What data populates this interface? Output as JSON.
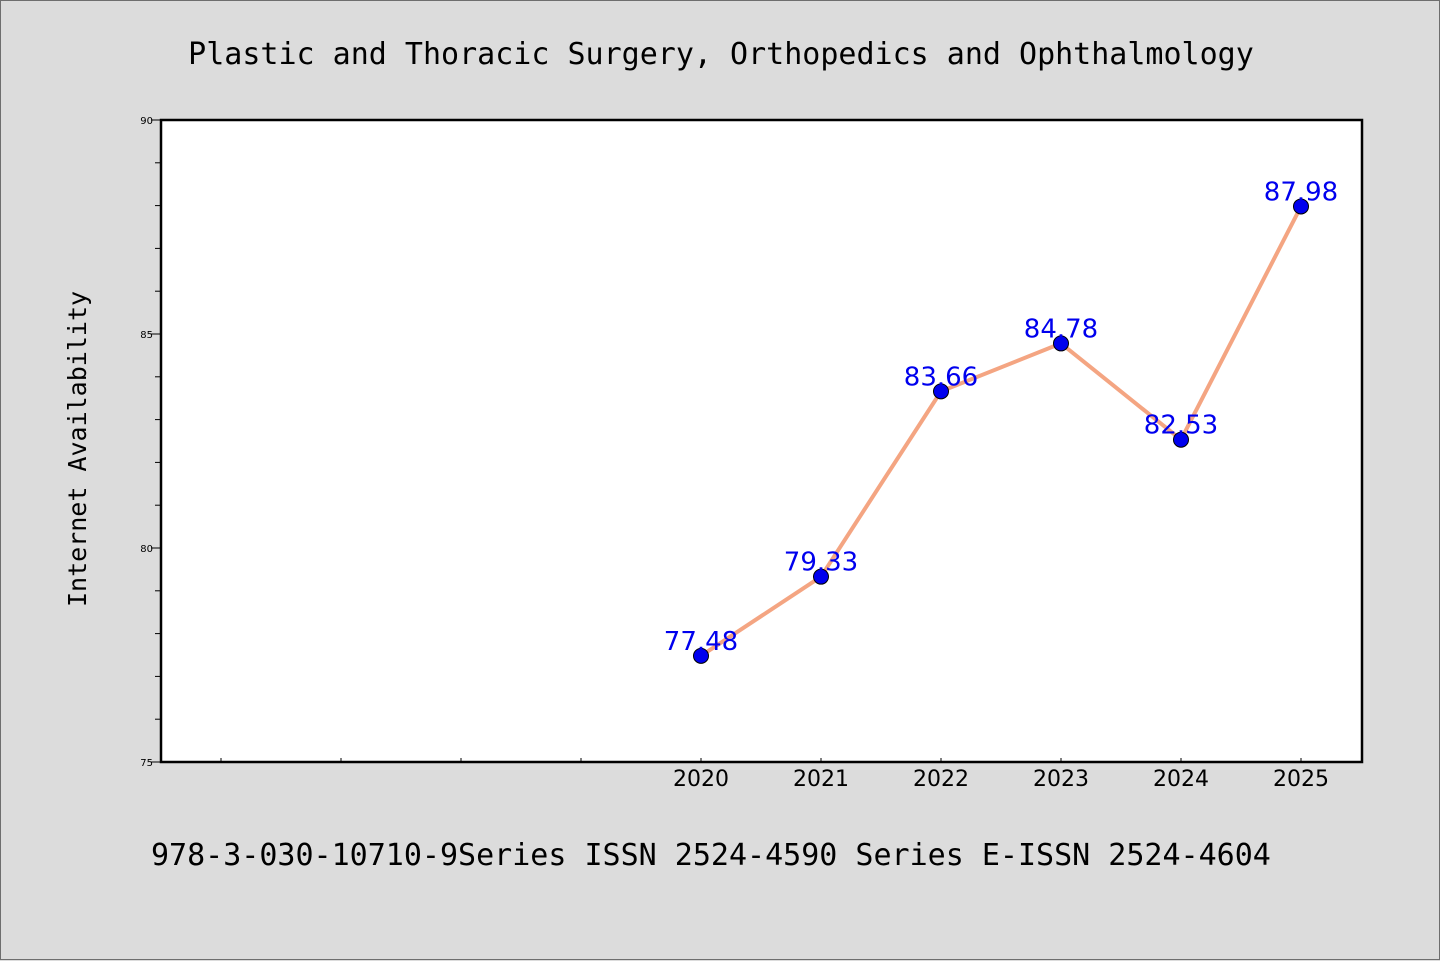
{
  "colors": {
    "background": "#dcdcdc",
    "plot_background": "#ffffff",
    "line": "#f4a582",
    "marker": "#0000ee",
    "data_label": "#0000ee"
  },
  "footer": "978-3-030-10710-9Series ISSN 2524-4590 Series E-ISSN 2524-4604",
  "chart_data": {
    "type": "line",
    "title": "Plastic and Thoracic Surgery, Orthopedics and Ophthalmology",
    "xlabel": "",
    "ylabel": "Internet Availability",
    "x": [
      "2020",
      "2021",
      "2022",
      "2023",
      "2024",
      "2025"
    ],
    "values": [
      77.48,
      79.33,
      83.66,
      84.78,
      82.53,
      87.98
    ],
    "data_labels": [
      "77.48",
      "79.33",
      "83.66",
      "84.78",
      "82.53",
      "87.98"
    ],
    "ylim": [
      75,
      90
    ],
    "yticks": [
      "75",
      "80",
      "85",
      "90"
    ],
    "x_leading_empty_ticks": 4,
    "grid": false,
    "markers": "circle"
  }
}
